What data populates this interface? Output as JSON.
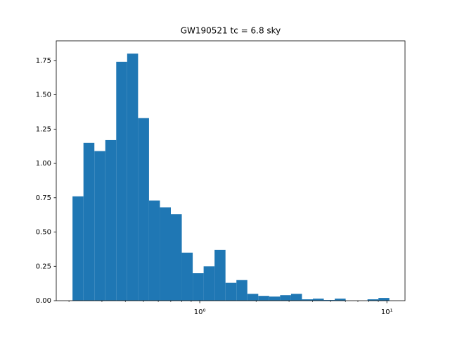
{
  "chart_data": {
    "type": "histogram",
    "title": "GW190521 tc = 6.8 sky",
    "bins": [
      0.2089,
      0.239,
      0.2734,
      0.3127,
      0.3577,
      0.4092,
      0.4681,
      0.5355,
      0.6125,
      0.7007,
      0.8015,
      0.9169,
      1.0488,
      1.1997,
      1.3724,
      1.5699,
      1.7958,
      2.0542,
      2.3498,
      2.6879,
      3.0747,
      3.5172,
      4.0233,
      4.6023,
      5.2645,
      6.0221,
      6.8887,
      7.88,
      9.0139,
      10.311
    ],
    "counts": [
      0.76,
      1.15,
      1.09,
      1.17,
      1.74,
      1.8,
      1.33,
      0.73,
      0.68,
      0.63,
      0.35,
      0.2,
      0.25,
      0.37,
      0.13,
      0.15,
      0.05,
      0.035,
      0.03,
      0.04,
      0.05,
      0.01,
      0.015,
      0.005,
      0.015,
      0,
      0,
      0.01,
      0.02
    ],
    "color": "#1f77b4",
    "xscale": "log",
    "xlim": [
      0.171,
      12.5
    ],
    "xticks": [
      {
        "value": 1,
        "label": "10⁰"
      },
      {
        "value": 10,
        "label": "10¹"
      }
    ],
    "xminorticks": [
      0.2,
      0.3,
      0.4,
      0.5,
      0.6,
      0.7,
      0.8,
      0.9,
      2,
      3,
      4,
      5,
      6,
      7,
      8,
      9
    ],
    "ylim": [
      0,
      1.893
    ],
    "yticks": [
      {
        "value": 0,
        "label": "0.00"
      },
      {
        "value": 0.25,
        "label": "0.25"
      },
      {
        "value": 0.5,
        "label": "0.50"
      },
      {
        "value": 0.75,
        "label": "0.75"
      },
      {
        "value": 1,
        "label": "1.00"
      },
      {
        "value": 1.25,
        "label": "1.25"
      },
      {
        "value": 1.5,
        "label": "1.50"
      },
      {
        "value": 1.75,
        "label": "1.75"
      }
    ]
  }
}
